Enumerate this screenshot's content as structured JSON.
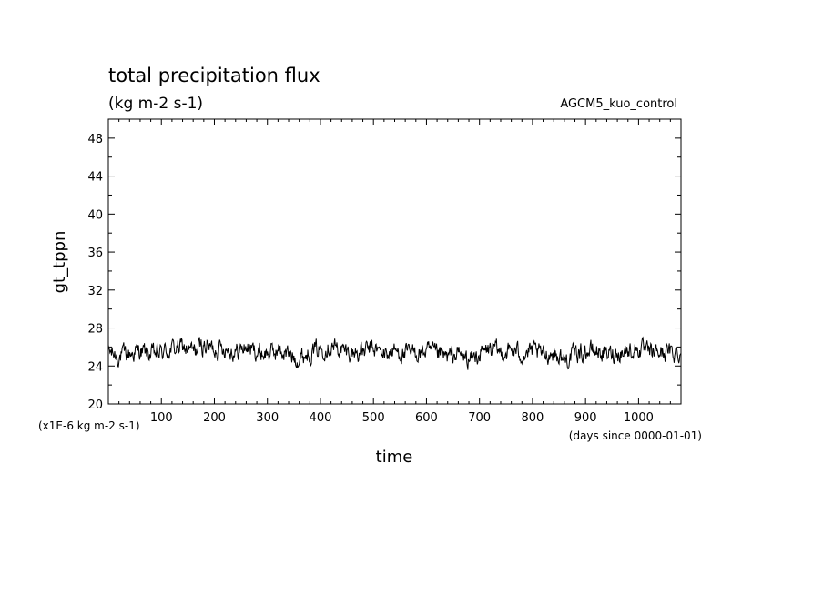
{
  "chart_data": {
    "type": "line",
    "title": "total precipitation flux",
    "subtitle": "(kg m-2 s-1)",
    "source": "AGCM5_kuo_control",
    "xlabel": "time",
    "ylabel": "gt_tppn",
    "x_unit": "(days since 0000-01-01)",
    "y_unit": "(x1E-6 kg m-2 s-1)",
    "xlim": [
      0,
      1080
    ],
    "ylim": [
      20,
      50
    ],
    "x_ticks": [
      "100",
      "200",
      "300",
      "400",
      "500",
      "600",
      "700",
      "800",
      "900",
      "1000"
    ],
    "y_ticks": [
      "20",
      "24",
      "28",
      "32",
      "36",
      "40",
      "44",
      "48"
    ],
    "grid": false,
    "legend": "none",
    "line_color": "#000000",
    "series": [
      {
        "x": [
          0,
          20,
          40,
          60,
          80,
          100,
          120,
          140,
          160,
          180,
          200,
          220,
          240,
          260,
          280,
          300,
          320,
          340,
          360,
          380,
          400,
          420,
          440,
          460,
          480,
          500,
          520,
          540,
          560,
          580,
          600,
          620,
          640,
          660,
          680,
          700,
          720,
          740,
          760,
          780,
          800,
          820,
          840,
          860,
          880,
          900,
          920,
          940,
          960,
          980,
          1000,
          1020,
          1040,
          1060,
          1080
        ],
        "values": [
          25.5,
          25.0,
          25.3,
          25.6,
          25.2,
          25.4,
          25.8,
          26.0,
          25.5,
          26.2,
          25.8,
          26.0,
          25.4,
          26.0,
          25.5,
          25.3,
          25.6,
          25.2,
          24.8,
          25.5,
          25.8,
          26.2,
          25.6,
          25.4,
          25.5,
          25.8,
          25.3,
          25.6,
          25.2,
          25.4,
          25.5,
          25.2,
          24.9,
          25.3,
          24.6,
          25.2,
          25.8,
          25.4,
          25.6,
          25.3,
          25.5,
          25.2,
          25.4,
          24.6,
          25.3,
          25.5,
          25.6,
          25.2,
          25.4,
          25.6,
          25.8,
          25.3,
          25.5,
          25.4,
          25.4
        ]
      }
    ]
  }
}
